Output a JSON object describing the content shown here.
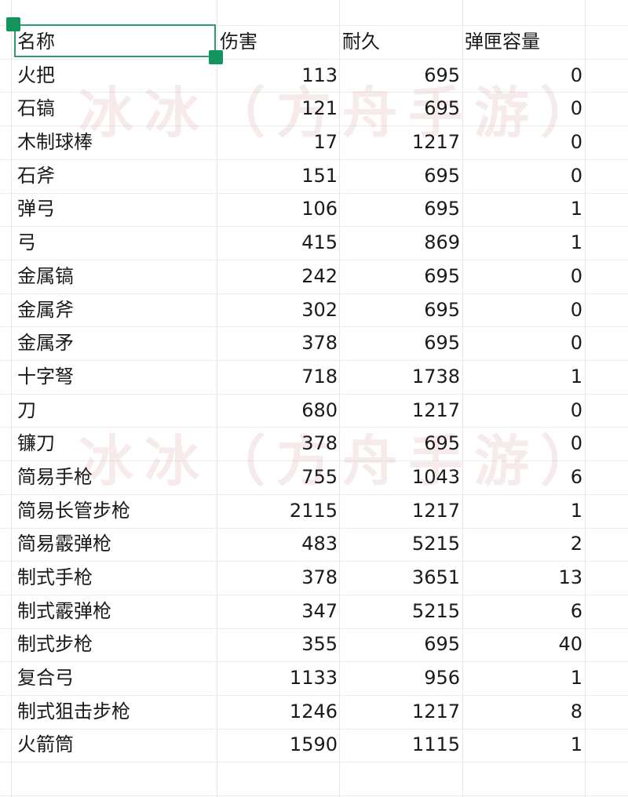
{
  "watermark": "冰冰（方舟手游）",
  "selection_color": "#14935f",
  "headers": [
    "名称",
    "伤害",
    "耐久",
    "弹匣容量"
  ],
  "rows": [
    [
      "火把",
      "113",
      "695",
      "0"
    ],
    [
      "石镐",
      "121",
      "695",
      "0"
    ],
    [
      "木制球棒",
      "17",
      "1217",
      "0"
    ],
    [
      "石斧",
      "151",
      "695",
      "0"
    ],
    [
      "弹弓",
      "106",
      "695",
      "1"
    ],
    [
      "弓",
      "415",
      "869",
      "1"
    ],
    [
      "金属镐",
      "242",
      "695",
      "0"
    ],
    [
      "金属斧",
      "302",
      "695",
      "0"
    ],
    [
      "金属矛",
      "378",
      "695",
      "0"
    ],
    [
      "十字弩",
      "718",
      "1738",
      "1"
    ],
    [
      "刀",
      "680",
      "1217",
      "0"
    ],
    [
      "镰刀",
      "378",
      "695",
      "0"
    ],
    [
      "简易手枪",
      "755",
      "1043",
      "6"
    ],
    [
      "简易长管步枪",
      "2115",
      "1217",
      "1"
    ],
    [
      "简易霰弹枪",
      "483",
      "5215",
      "2"
    ],
    [
      "制式手枪",
      "378",
      "3651",
      "13"
    ],
    [
      "制式霰弹枪",
      "347",
      "5215",
      "6"
    ],
    [
      "制式步枪",
      "355",
      "695",
      "40"
    ],
    [
      "复合弓",
      "1133",
      "956",
      "1"
    ],
    [
      "制式狙击步枪",
      "1246",
      "1217",
      "8"
    ],
    [
      "火箭筒",
      "1590",
      "1115",
      "1"
    ]
  ]
}
